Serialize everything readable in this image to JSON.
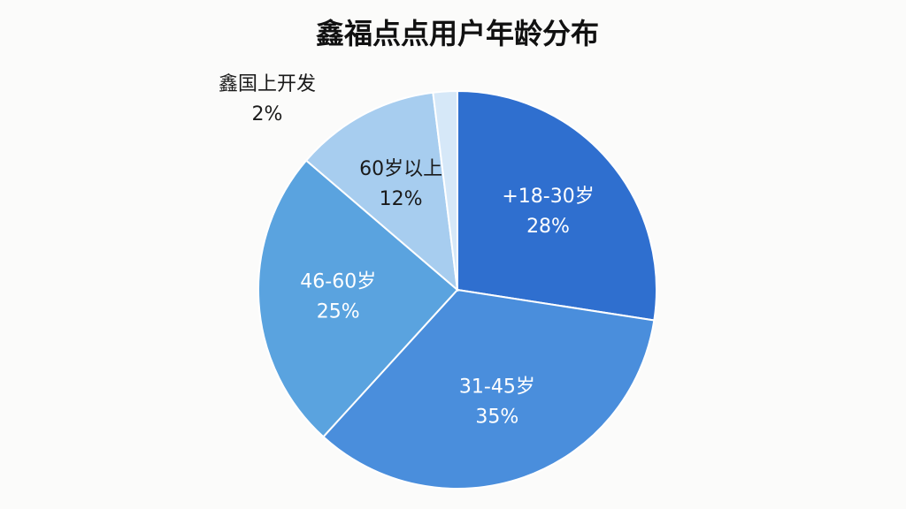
{
  "chart_data": {
    "type": "pie",
    "title": "鑫福点点用户年龄分布",
    "categories": [
      "+18-30岁",
      "31-45岁",
      "46-60岁",
      "60岁以上",
      "鑫国上开发"
    ],
    "values": [
      28,
      35,
      25,
      12,
      2
    ],
    "value_labels": [
      "28%",
      "35%",
      "25%",
      "12%",
      "2%"
    ],
    "colors": [
      "#2f6fcf",
      "#4a8edc",
      "#5aa3df",
      "#a7cdef",
      "#d6e8f8"
    ]
  }
}
